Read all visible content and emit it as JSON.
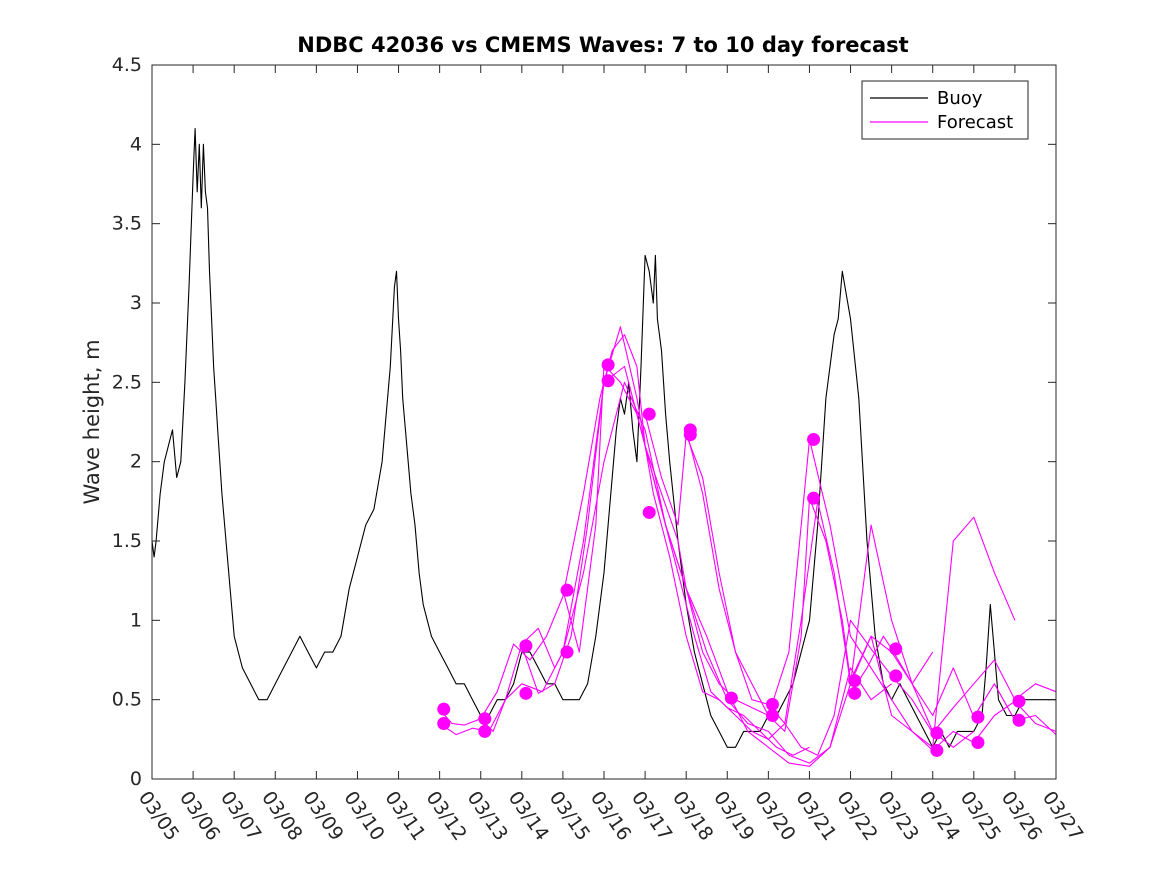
{
  "chart_data": {
    "type": "line",
    "title": "NDBC 42036 vs CMEMS Waves: 7 to 10 day forecast",
    "xlabel": "",
    "ylabel": "Wave height, m",
    "xlim": [
      0,
      22
    ],
    "ylim": [
      0,
      4.5
    ],
    "x_ticks": [
      0,
      1,
      2,
      3,
      4,
      5,
      6,
      7,
      8,
      9,
      10,
      11,
      12,
      13,
      14,
      15,
      16,
      17,
      18,
      19,
      20,
      21,
      22
    ],
    "x_tick_labels": [
      "03/05",
      "03/06",
      "03/07",
      "03/08",
      "03/09",
      "03/10",
      "03/11",
      "03/12",
      "03/13",
      "03/14",
      "03/15",
      "03/16",
      "03/17",
      "03/18",
      "03/19",
      "03/20",
      "03/21",
      "03/22",
      "03/23",
      "03/24",
      "03/25",
      "03/26",
      "03/27"
    ],
    "y_ticks": [
      0,
      0.5,
      1,
      1.5,
      2,
      2.5,
      3,
      3.5,
      4,
      4.5
    ],
    "y_tick_labels": [
      "0",
      "0.5",
      "1",
      "1.5",
      "2",
      "2.5",
      "3",
      "3.5",
      "4",
      "4.5"
    ],
    "legend": {
      "position": "top-right",
      "entries": [
        {
          "name": "Buoy",
          "color": "#000000"
        },
        {
          "name": "Forecast",
          "color": "#ff00ff"
        }
      ]
    },
    "colors": {
      "buoy": "#000000",
      "forecast": "#ff00ff"
    },
    "series": [
      {
        "name": "Buoy",
        "x": [
          0,
          0.05,
          0.1,
          0.2,
          0.3,
          0.4,
          0.5,
          0.6,
          0.7,
          0.8,
          0.9,
          1.0,
          1.05,
          1.1,
          1.15,
          1.2,
          1.25,
          1.3,
          1.35,
          1.4,
          1.45,
          1.5,
          1.55,
          1.6,
          1.7,
          1.8,
          1.9,
          2.0,
          2.1,
          2.2,
          2.4,
          2.6,
          2.8,
          3.0,
          3.2,
          3.4,
          3.6,
          3.8,
          4.0,
          4.2,
          4.4,
          4.6,
          4.8,
          5.0,
          5.2,
          5.4,
          5.6,
          5.8,
          5.9,
          5.95,
          6.0,
          6.05,
          6.1,
          6.2,
          6.3,
          6.4,
          6.5,
          6.6,
          6.8,
          7.0,
          7.2,
          7.4,
          7.6,
          7.8,
          8.0,
          8.2,
          8.4,
          8.6,
          8.8,
          9.0,
          9.2,
          9.4,
          9.6,
          9.8,
          10.0,
          10.2,
          10.4,
          10.6,
          10.8,
          11.0,
          11.1,
          11.2,
          11.3,
          11.4,
          11.5,
          11.6,
          11.7,
          11.8,
          11.9,
          12.0,
          12.1,
          12.2,
          12.25,
          12.3,
          12.4,
          12.5,
          12.6,
          12.8,
          13.0,
          13.2,
          13.4,
          13.6,
          13.8,
          14.0,
          14.2,
          14.4,
          14.6,
          14.8,
          15.0,
          15.2,
          15.4,
          15.6,
          15.8,
          16.0,
          16.1,
          16.2,
          16.3,
          16.4,
          16.5,
          16.6,
          16.7,
          16.8,
          17.0,
          17.2,
          17.4,
          17.6,
          17.8,
          18.0,
          18.2,
          18.4,
          18.6,
          18.8,
          19.0,
          19.2,
          19.4,
          19.6,
          19.8,
          20.0,
          20.2,
          20.3,
          20.4,
          20.5,
          20.6,
          20.8,
          21.0,
          21.2,
          21.4,
          21.6,
          21.8,
          22.0
        ],
        "y": [
          1.5,
          1.4,
          1.5,
          1.8,
          2.0,
          2.1,
          2.2,
          1.9,
          2.0,
          2.5,
          3.1,
          3.8,
          4.1,
          3.7,
          4.0,
          3.6,
          4.0,
          3.7,
          3.6,
          3.2,
          2.9,
          2.6,
          2.4,
          2.2,
          1.8,
          1.5,
          1.2,
          0.9,
          0.8,
          0.7,
          0.6,
          0.5,
          0.5,
          0.6,
          0.7,
          0.8,
          0.9,
          0.8,
          0.7,
          0.8,
          0.8,
          0.9,
          1.2,
          1.4,
          1.6,
          1.7,
          2.0,
          2.6,
          3.1,
          3.2,
          2.9,
          2.7,
          2.4,
          2.1,
          1.8,
          1.6,
          1.3,
          1.1,
          0.9,
          0.8,
          0.7,
          0.6,
          0.6,
          0.5,
          0.4,
          0.4,
          0.5,
          0.5,
          0.6,
          0.8,
          0.8,
          0.7,
          0.6,
          0.6,
          0.5,
          0.5,
          0.5,
          0.6,
          0.9,
          1.3,
          1.6,
          1.9,
          2.2,
          2.4,
          2.3,
          2.5,
          2.2,
          2.0,
          2.6,
          3.3,
          3.2,
          3.0,
          3.3,
          2.9,
          2.7,
          2.3,
          2.0,
          1.5,
          1.1,
          0.8,
          0.6,
          0.4,
          0.3,
          0.2,
          0.2,
          0.3,
          0.3,
          0.3,
          0.4,
          0.4,
          0.5,
          0.6,
          0.8,
          1.0,
          1.3,
          1.6,
          2.0,
          2.4,
          2.6,
          2.8,
          2.9,
          3.2,
          2.9,
          2.4,
          1.5,
          0.9,
          0.6,
          0.5,
          0.6,
          0.5,
          0.4,
          0.3,
          0.2,
          0.3,
          0.2,
          0.3,
          0.3,
          0.3,
          0.4,
          0.7,
          1.1,
          0.8,
          0.5,
          0.4,
          0.4,
          0.5,
          0.5,
          0.5,
          0.5,
          0.5
        ]
      },
      {
        "name": "Forecast",
        "x": [
          7.0,
          7.3,
          7.6,
          8.0,
          8.4,
          8.8,
          9.2,
          9.6,
          10.0,
          10.5,
          10.9,
          11.2,
          11.5,
          11.8,
          12.0,
          12.4,
          12.8,
          13.2,
          13.6,
          14.0,
          14.4,
          14.8,
          15.2,
          15.6,
          16.0
        ],
        "y": [
          0.44,
          0.35,
          0.34,
          0.38,
          0.55,
          0.85,
          0.75,
          0.9,
          1.15,
          1.8,
          2.4,
          2.7,
          2.8,
          2.6,
          2.1,
          1.7,
          1.3,
          0.9,
          0.55,
          0.45,
          0.4,
          0.3,
          0.2,
          0.15,
          0.2
        ]
      },
      {
        "name": "Forecast",
        "x": [
          7.0,
          7.4,
          7.8,
          8.2,
          8.6,
          9.0,
          9.5,
          10.0,
          10.5,
          11.0,
          11.5,
          12.0,
          12.5,
          13.0,
          13.5,
          14.0,
          14.5,
          15.0,
          15.5,
          16.0,
          16.5,
          17.0,
          17.5,
          18.0
        ],
        "y": [
          0.35,
          0.28,
          0.32,
          0.3,
          0.5,
          0.6,
          0.55,
          0.8,
          1.3,
          2.0,
          2.5,
          2.2,
          1.6,
          1.2,
          0.9,
          0.55,
          0.3,
          0.2,
          0.1,
          0.08,
          0.2,
          0.7,
          0.5,
          0.6
        ]
      },
      {
        "name": "Forecast",
        "x": [
          8.0,
          8.3,
          8.6,
          9.0,
          9.4,
          9.8,
          10.0,
          10.5,
          11.0,
          11.5,
          12.0,
          12.5,
          13.0,
          13.5,
          14.0,
          14.5,
          15.0,
          15.5,
          16.0,
          16.5,
          17.0,
          17.5,
          18.0,
          18.5,
          19.0
        ],
        "y": [
          0.38,
          0.3,
          0.5,
          0.85,
          0.95,
          0.7,
          0.8,
          1.5,
          2.5,
          2.6,
          2.1,
          1.6,
          1.2,
          0.8,
          0.5,
          0.35,
          0.3,
          0.15,
          0.1,
          0.2,
          0.6,
          1.6,
          1.0,
          0.6,
          0.8
        ]
      },
      {
        "name": "Forecast",
        "x": [
          9.0,
          9.4,
          9.8,
          10.2,
          10.6,
          11.0,
          11.4,
          11.8,
          12.2,
          12.6,
          13.0,
          13.4,
          13.8,
          14.2,
          14.6,
          15.0,
          15.4,
          15.8,
          16.2,
          16.6,
          17.0,
          17.5,
          18.0,
          18.5,
          19.0,
          19.5,
          20.0
        ],
        "y": [
          0.84,
          0.54,
          0.6,
          0.9,
          1.6,
          2.5,
          2.85,
          2.4,
          1.8,
          1.4,
          0.9,
          0.55,
          0.5,
          0.4,
          0.3,
          0.25,
          0.35,
          1.0,
          1.75,
          1.3,
          0.6,
          0.9,
          0.8,
          0.6,
          0.3,
          0.2,
          0.3
        ]
      },
      {
        "name": "Forecast",
        "x": [
          10.0,
          10.4,
          10.8,
          11.0,
          11.4,
          11.8,
          12.0,
          12.4,
          12.8,
          13.0,
          13.4,
          13.8,
          14.2,
          14.6,
          15.0,
          15.5,
          16.0,
          16.5,
          17.0,
          17.5,
          18.0,
          18.5,
          19.0,
          19.5,
          20.0,
          20.5,
          21.0
        ],
        "y": [
          1.19,
          0.8,
          1.6,
          2.61,
          2.5,
          2.3,
          2.1,
          1.8,
          1.5,
          1.2,
          0.8,
          0.6,
          0.5,
          0.45,
          0.4,
          0.8,
          2.14,
          1.6,
          0.9,
          0.7,
          0.5,
          0.3,
          0.2,
          1.5,
          1.65,
          1.3,
          1.0
        ]
      },
      {
        "name": "Forecast",
        "x": [
          12.0,
          12.4,
          12.8,
          13.0,
          13.4,
          13.8,
          14.2,
          14.6,
          15.0,
          15.4,
          15.8,
          16.2,
          16.6,
          17.0,
          17.5,
          18.0,
          18.5,
          19.0,
          19.5,
          20.0,
          20.5,
          21.0,
          21.5,
          22.0
        ],
        "y": [
          2.3,
          1.9,
          1.6,
          2.17,
          1.9,
          1.3,
          0.8,
          0.5,
          0.47,
          0.35,
          0.2,
          0.15,
          0.4,
          1.0,
          0.82,
          0.65,
          0.5,
          0.29,
          0.45,
          0.6,
          0.75,
          0.5,
          0.6,
          0.55
        ]
      },
      {
        "name": "Forecast",
        "x": [
          13.0,
          13.4,
          13.8,
          14.2,
          14.6,
          15.0,
          15.4,
          15.8,
          16.0,
          16.4,
          16.8,
          17.0,
          17.5,
          18.0,
          18.5,
          19.0,
          19.5,
          20.0,
          20.5,
          21.0,
          21.5,
          22.0
        ],
        "y": [
          2.2,
          1.8,
          1.2,
          0.8,
          0.6,
          0.4,
          0.3,
          0.9,
          1.77,
          1.5,
          1.0,
          0.62,
          0.9,
          0.4,
          0.3,
          0.18,
          0.3,
          0.23,
          0.4,
          0.49,
          0.35,
          0.3
        ]
      },
      {
        "name": "Forecast",
        "x": [
          17.0,
          17.4,
          17.8,
          18.0,
          18.5,
          19.0,
          19.5,
          20.0,
          20.5,
          21.0,
          21.5,
          22.0
        ],
        "y": [
          0.54,
          0.7,
          0.9,
          0.82,
          0.6,
          0.4,
          0.7,
          0.39,
          0.6,
          0.37,
          0.4,
          0.28
        ]
      }
    ],
    "markers": {
      "x": [
        7.1,
        7.1,
        8.1,
        8.1,
        9.1,
        9.1,
        10.1,
        10.1,
        11.1,
        11.1,
        12.1,
        12.1,
        13.1,
        13.1,
        14.1,
        15.1,
        15.1,
        16.1,
        16.1,
        17.1,
        17.1,
        18.1,
        18.1,
        19.1,
        19.1,
        20.1,
        20.1,
        21.1,
        21.1
      ],
      "y": [
        0.44,
        0.35,
        0.38,
        0.3,
        0.84,
        0.54,
        1.19,
        0.8,
        2.61,
        2.51,
        2.3,
        1.68,
        2.2,
        2.17,
        0.51,
        0.47,
        0.4,
        2.14,
        1.77,
        0.62,
        0.54,
        0.82,
        0.65,
        0.29,
        0.18,
        0.39,
        0.23,
        0.49,
        0.37
      ]
    }
  }
}
